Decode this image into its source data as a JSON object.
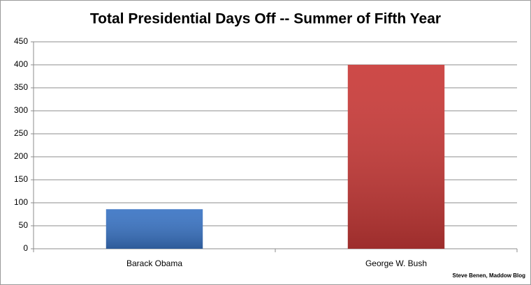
{
  "chart_data": {
    "type": "bar",
    "title": "Total Presidential Days Off -- Summer of Fifth Year",
    "categories": [
      "Barack Obama",
      "George W. Bush"
    ],
    "values": [
      86,
      400
    ],
    "colors": [
      "#3a74c4",
      "#c93a38"
    ],
    "ylim": [
      0,
      450
    ],
    "yticks": [
      0,
      50,
      100,
      150,
      200,
      250,
      300,
      350,
      400,
      450
    ],
    "grid": true,
    "annotation": "Steve Benen, Maddow Blog"
  }
}
